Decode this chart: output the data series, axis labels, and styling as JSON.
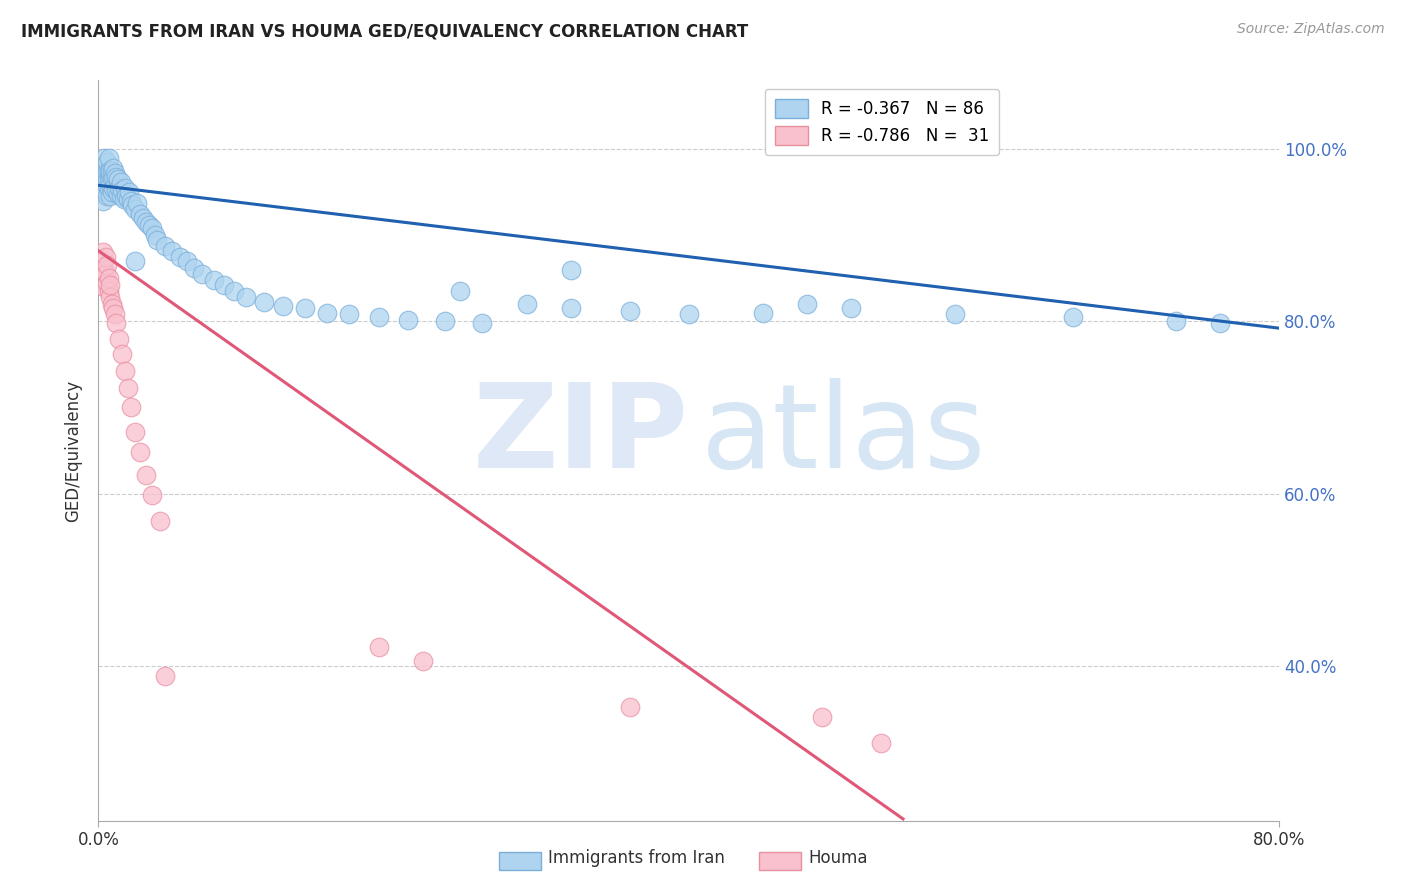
{
  "title": "IMMIGRANTS FROM IRAN VS HOUMA GED/EQUIVALENCY CORRELATION CHART",
  "source": "Source: ZipAtlas.com",
  "ylabel": "GED/Equivalency",
  "ytick_labels": [
    "100.0%",
    "80.0%",
    "60.0%",
    "40.0%"
  ],
  "ytick_values": [
    1.0,
    0.8,
    0.6,
    0.4
  ],
  "xlim": [
    0.0,
    0.8
  ],
  "ylim": [
    0.22,
    1.08
  ],
  "legend1_label": "R = -0.367   N = 86",
  "legend2_label": "R = -0.786   N =  31",
  "scatter1_color": "#aed4f0",
  "scatter2_color": "#f9c0cd",
  "scatter1_edge": "#7aaedb",
  "scatter2_edge": "#e88fa0",
  "trendline1_color": "#2060b0",
  "trendline2_color": "#e05878",
  "trendline1_x": [
    0.0,
    0.8
  ],
  "trendline1_y": [
    0.958,
    0.792
  ],
  "trendline2_x": [
    0.0,
    0.545
  ],
  "trendline2_y": [
    0.882,
    0.222
  ],
  "blue_scatter_x": [
    0.002,
    0.003,
    0.003,
    0.004,
    0.004,
    0.004,
    0.005,
    0.005,
    0.005,
    0.006,
    0.006,
    0.006,
    0.006,
    0.007,
    0.007,
    0.007,
    0.007,
    0.008,
    0.008,
    0.008,
    0.008,
    0.009,
    0.009,
    0.009,
    0.01,
    0.01,
    0.01,
    0.011,
    0.011,
    0.012,
    0.012,
    0.013,
    0.013,
    0.014,
    0.015,
    0.015,
    0.016,
    0.017,
    0.018,
    0.019,
    0.02,
    0.021,
    0.022,
    0.023,
    0.025,
    0.026,
    0.028,
    0.03,
    0.032,
    0.034,
    0.036,
    0.038,
    0.04,
    0.045,
    0.05,
    0.055,
    0.06,
    0.065,
    0.07,
    0.078,
    0.085,
    0.092,
    0.1,
    0.112,
    0.125,
    0.14,
    0.155,
    0.17,
    0.19,
    0.21,
    0.235,
    0.26,
    0.29,
    0.32,
    0.36,
    0.4,
    0.45,
    0.51,
    0.58,
    0.66,
    0.73,
    0.76,
    0.025,
    0.245,
    0.32,
    0.48
  ],
  "blue_scatter_y": [
    0.96,
    0.94,
    0.97,
    0.955,
    0.975,
    0.99,
    0.95,
    0.97,
    0.96,
    0.945,
    0.965,
    0.975,
    0.985,
    0.955,
    0.965,
    0.975,
    0.99,
    0.945,
    0.96,
    0.97,
    0.975,
    0.95,
    0.965,
    0.975,
    0.955,
    0.968,
    0.978,
    0.958,
    0.972,
    0.952,
    0.968,
    0.948,
    0.965,
    0.955,
    0.945,
    0.962,
    0.952,
    0.942,
    0.955,
    0.945,
    0.942,
    0.95,
    0.94,
    0.935,
    0.93,
    0.938,
    0.925,
    0.92,
    0.915,
    0.912,
    0.908,
    0.9,
    0.895,
    0.888,
    0.882,
    0.875,
    0.87,
    0.862,
    0.855,
    0.848,
    0.842,
    0.835,
    0.828,
    0.822,
    0.818,
    0.815,
    0.81,
    0.808,
    0.805,
    0.802,
    0.8,
    0.798,
    0.82,
    0.815,
    0.812,
    0.808,
    0.81,
    0.815,
    0.808,
    0.805,
    0.8,
    0.798,
    0.87,
    0.835,
    0.86,
    0.82
  ],
  "pink_scatter_x": [
    0.003,
    0.004,
    0.004,
    0.005,
    0.005,
    0.006,
    0.006,
    0.007,
    0.007,
    0.008,
    0.008,
    0.009,
    0.01,
    0.011,
    0.012,
    0.014,
    0.016,
    0.018,
    0.02,
    0.022,
    0.025,
    0.028,
    0.032,
    0.036,
    0.042,
    0.19,
    0.22,
    0.36,
    0.49,
    0.53,
    0.045
  ],
  "pink_scatter_y": [
    0.88,
    0.86,
    0.84,
    0.855,
    0.875,
    0.845,
    0.865,
    0.835,
    0.85,
    0.828,
    0.842,
    0.82,
    0.815,
    0.808,
    0.798,
    0.78,
    0.762,
    0.742,
    0.722,
    0.7,
    0.672,
    0.648,
    0.622,
    0.598,
    0.568,
    0.422,
    0.405,
    0.352,
    0.34,
    0.31,
    0.388
  ]
}
